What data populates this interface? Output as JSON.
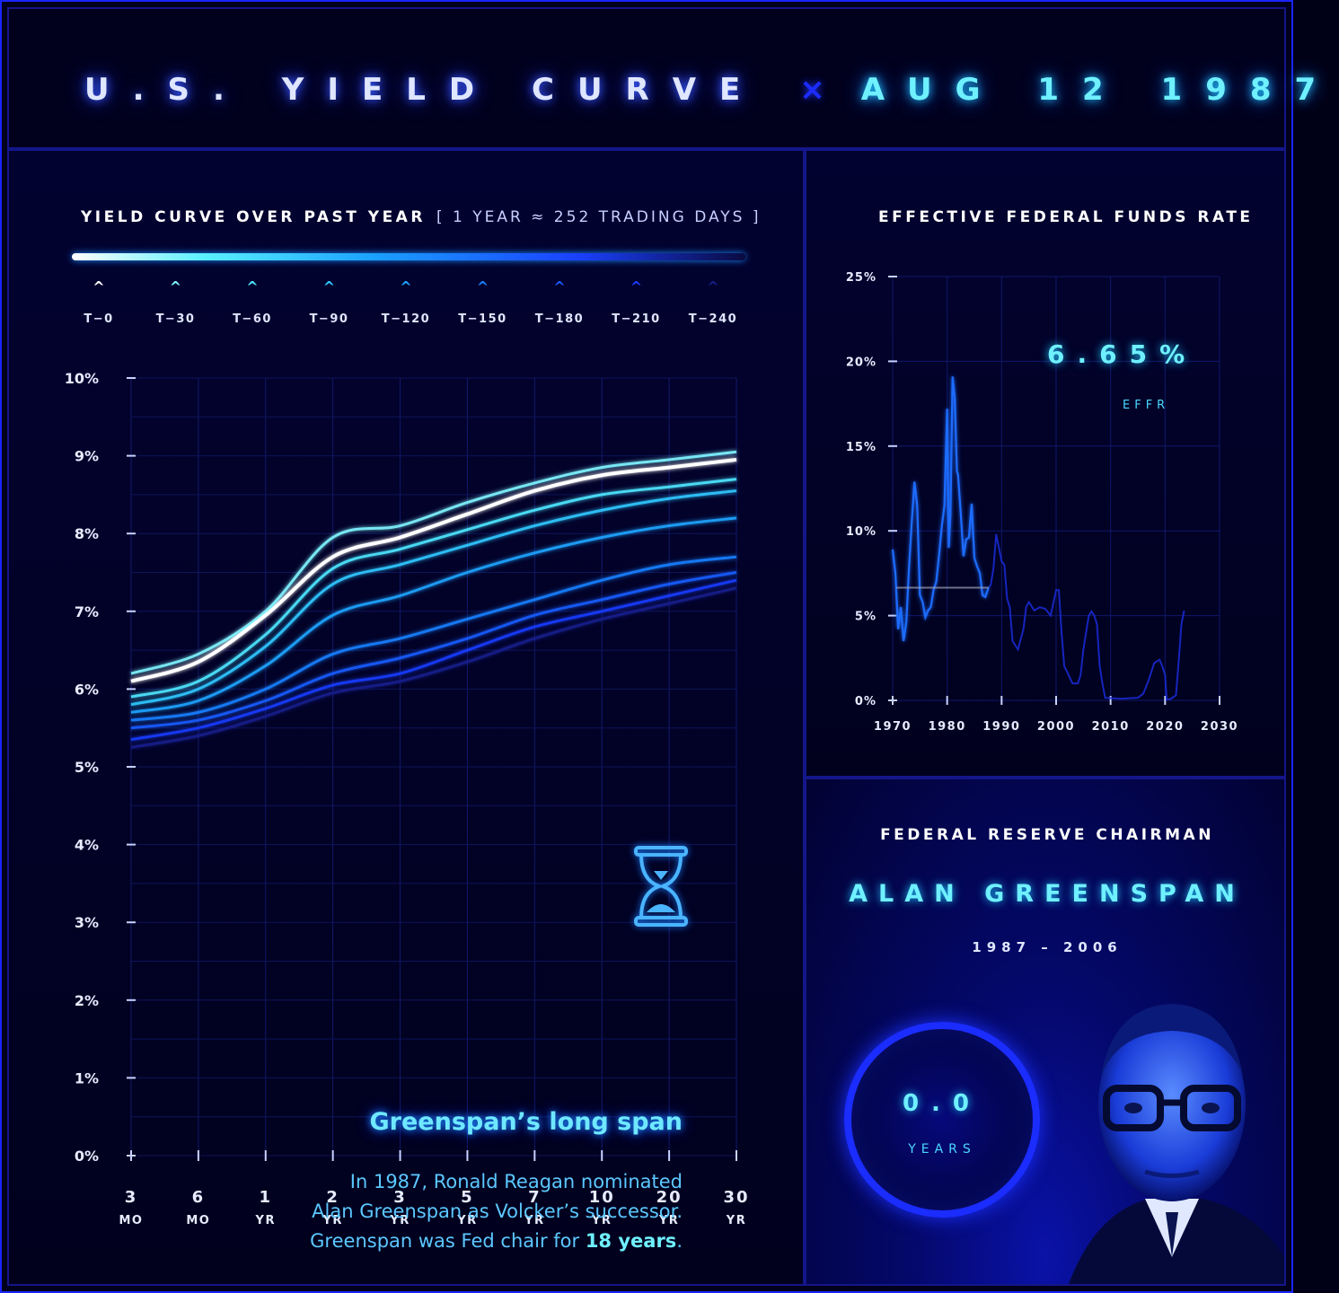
{
  "header": {
    "title": "U.S. YIELD CURVE",
    "separator": "×",
    "date": "AUG 12 1987"
  },
  "main": {
    "section_title": "YIELD CURVE OVER PAST YEAR",
    "section_sub": "[ 1 YEAR ≈ 252 TRADING DAYS ]",
    "legend": [
      "T−0",
      "T−30",
      "T−60",
      "T−90",
      "T−120",
      "T−150",
      "T−180",
      "T−210",
      "T−240"
    ],
    "legend_colors": [
      "#ffffff",
      "#7ff4ff",
      "#4ee6ff",
      "#2fc8ff",
      "#1fa4ff",
      "#1a80ff",
      "#1a5cff",
      "#1a3cff",
      "#151f8c"
    ],
    "annotation_title": "Greenspan’s long span",
    "annotation_line1": "In 1987, Ronald Reagan nominated",
    "annotation_line2": "Alan Greenspan as Volcker’s successor.",
    "annotation_line3_pre": "Greenspan was Fed chair for ",
    "annotation_line3_bold": "18 years",
    "annotation_line3_post": ".",
    "icon": "hourglass-icon"
  },
  "effr": {
    "section_title": "EFFECTIVE FEDERAL FUNDS RATE",
    "value": "6.65%",
    "value_label": "EFFR"
  },
  "chair": {
    "heading": "FEDERAL RESERVE CHAIRMAN",
    "name": "ALAN GREENSPAN",
    "years": "1987 – 2006",
    "tenure_value": "0.0",
    "tenure_unit": "YEARS"
  },
  "chart_data": [
    {
      "type": "line",
      "title": "YIELD CURVE OVER PAST YEAR",
      "x_categories": [
        "3 MO",
        "6 MO",
        "1 YR",
        "2 YR",
        "3 YR",
        "5 YR",
        "7 YR",
        "10 YR",
        "20 YR",
        "30 YR"
      ],
      "y_ticks": [
        "0%",
        "1%",
        "2%",
        "3%",
        "4%",
        "5%",
        "6%",
        "7%",
        "8%",
        "9%",
        "10%"
      ],
      "ylim": [
        0,
        10
      ],
      "grid": true,
      "series": [
        {
          "name": "T−0",
          "values": [
            6.1,
            6.35,
            6.95,
            7.7,
            7.95,
            8.25,
            8.55,
            8.75,
            8.85,
            8.95
          ]
        },
        {
          "name": "T−30",
          "values": [
            6.2,
            6.45,
            7.0,
            7.95,
            8.1,
            8.4,
            8.65,
            8.85,
            8.95,
            9.05
          ]
        },
        {
          "name": "T−60",
          "values": [
            5.9,
            6.1,
            6.7,
            7.55,
            7.8,
            8.05,
            8.3,
            8.5,
            8.6,
            8.7
          ]
        },
        {
          "name": "T−90",
          "values": [
            5.8,
            6.0,
            6.55,
            7.35,
            7.6,
            7.85,
            8.1,
            8.3,
            8.45,
            8.55
          ]
        },
        {
          "name": "T−120",
          "values": [
            5.7,
            5.85,
            6.3,
            6.95,
            7.2,
            7.5,
            7.75,
            7.95,
            8.1,
            8.2
          ]
        },
        {
          "name": "T−150",
          "values": [
            5.6,
            5.7,
            6.0,
            6.45,
            6.65,
            6.9,
            7.15,
            7.4,
            7.6,
            7.7
          ]
        },
        {
          "name": "T−180",
          "values": [
            5.5,
            5.6,
            5.85,
            6.2,
            6.4,
            6.65,
            6.95,
            7.15,
            7.35,
            7.5
          ]
        },
        {
          "name": "T−210",
          "values": [
            5.35,
            5.5,
            5.75,
            6.05,
            6.2,
            6.5,
            6.8,
            7.0,
            7.2,
            7.4
          ]
        },
        {
          "name": "T−240",
          "values": [
            5.25,
            5.4,
            5.65,
            5.95,
            6.1,
            6.35,
            6.65,
            6.9,
            7.1,
            7.3
          ]
        }
      ]
    },
    {
      "type": "line",
      "title": "EFFECTIVE FEDERAL FUNDS RATE",
      "x_ticks": [
        "1970",
        "1980",
        "1990",
        "2000",
        "2010",
        "2020",
        "2030"
      ],
      "y_ticks": [
        "0%",
        "5%",
        "10%",
        "15%",
        "20%",
        "25%"
      ],
      "xlim": [
        1970,
        2030
      ],
      "ylim": [
        0,
        25
      ],
      "grid": true,
      "current_point": {
        "x": 1987.6,
        "y": 6.65
      },
      "series": [
        {
          "name": "EFFR",
          "x": [
            1970,
            1970.5,
            1971,
            1971.5,
            1972,
            1972.5,
            1973,
            1973.5,
            1974,
            1974.5,
            1975,
            1975.5,
            1976,
            1976.5,
            1977,
            1977.5,
            1978,
            1978.5,
            1979,
            1979.5,
            1980,
            1980.3,
            1980.6,
            1981,
            1981.4,
            1981.8,
            1982,
            1982.5,
            1983,
            1983.5,
            1984,
            1984.5,
            1985,
            1985.5,
            1986,
            1986.5,
            1987,
            1987.6,
            1988,
            1988.5,
            1989,
            1989.5,
            1990,
            1990.5,
            1991,
            1991.5,
            1992,
            1993,
            1994,
            1994.5,
            1995,
            1996,
            1997,
            1998,
            1999,
            2000,
            2000.5,
            2001,
            2001.5,
            2002,
            2003,
            2004,
            2004.5,
            2005,
            2006,
            2006.5,
            2007,
            2007.5,
            2008,
            2008.5,
            2009,
            2012,
            2015,
            2016,
            2017,
            2018,
            2019,
            2019.5,
            2020,
            2020.3,
            2021,
            2022,
            2022.5,
            2023,
            2023.5
          ],
          "values": [
            8.9,
            7.5,
            4.2,
            5.5,
            3.5,
            4.6,
            7.8,
            10.5,
            12.9,
            11.5,
            6.2,
            5.8,
            4.9,
            5.3,
            5.5,
            6.5,
            7.0,
            8.5,
            10.2,
            11.5,
            17.2,
            9.0,
            11.0,
            19.1,
            17.8,
            13.5,
            13.3,
            11.0,
            8.5,
            9.5,
            9.6,
            11.6,
            8.4,
            7.9,
            7.5,
            6.2,
            6.1,
            6.65,
            6.8,
            7.8,
            9.8,
            9.0,
            8.2,
            8.0,
            6.0,
            5.5,
            3.5,
            3.0,
            4.2,
            5.5,
            5.8,
            5.3,
            5.5,
            5.4,
            5.0,
            6.5,
            6.5,
            4.0,
            2.0,
            1.7,
            1.0,
            1.0,
            1.5,
            3.0,
            5.0,
            5.25,
            5.0,
            4.5,
            2.0,
            1.0,
            0.15,
            0.1,
            0.15,
            0.4,
            1.2,
            2.2,
            2.4,
            2.0,
            1.5,
            0.05,
            0.08,
            0.3,
            2.3,
            4.5,
            5.3
          ]
        }
      ]
    }
  ]
}
